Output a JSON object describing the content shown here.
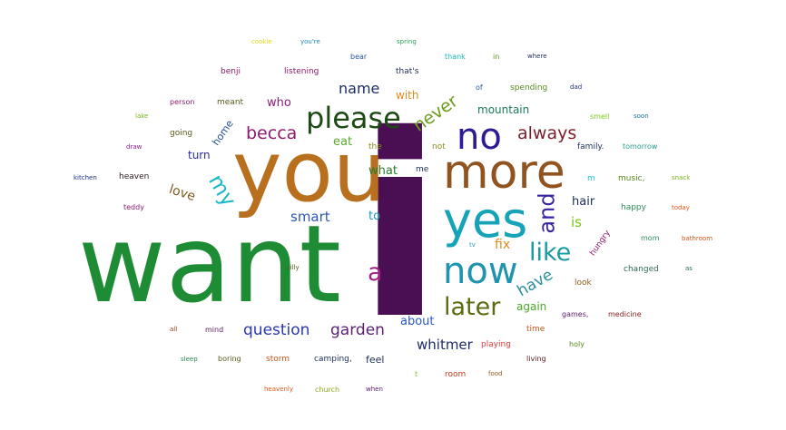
{
  "word_cloud": {
    "words": [
      {
        "id": "want",
        "text": "want",
        "color": "#1e8c35"
      },
      {
        "id": "i",
        "text": "i",
        "color": "#4a0f52"
      },
      {
        "id": "you",
        "text": "you",
        "color": "#b8701f"
      },
      {
        "id": "more",
        "text": "more",
        "color": "#915421"
      },
      {
        "id": "yes",
        "text": "yes",
        "color": "#16a3b8"
      },
      {
        "id": "now",
        "text": "now",
        "color": "#2093b0"
      },
      {
        "id": "please",
        "text": "please",
        "color": "#1d4a14"
      },
      {
        "id": "no",
        "text": "no",
        "color": "#2e1a94"
      },
      {
        "id": "like",
        "text": "like",
        "color": "#1a9aa3"
      },
      {
        "id": "later",
        "text": "later",
        "color": "#5c6b10"
      },
      {
        "id": "and",
        "text": "and",
        "color": "#3a23a0"
      },
      {
        "id": "always",
        "text": "always",
        "color": "#7a1f2a"
      },
      {
        "id": "becca",
        "text": "becca",
        "color": "#8c1a6d"
      },
      {
        "id": "my",
        "text": "my",
        "color": "#17b8c8"
      },
      {
        "id": "never",
        "text": "never",
        "color": "#6b9a1c"
      },
      {
        "id": "name",
        "text": "name",
        "color": "#1d2d64"
      },
      {
        "id": "question",
        "text": "question",
        "color": "#2a37b0"
      },
      {
        "id": "garden",
        "text": "garden",
        "color": "#5b1f73"
      },
      {
        "id": "whitmer",
        "text": "whitmer",
        "color": "#1d2d64"
      },
      {
        "id": "a",
        "text": "a",
        "color": "#a01f84"
      },
      {
        "id": "have",
        "text": "have",
        "color": "#2b8fa0"
      },
      {
        "id": "smart",
        "text": "smart",
        "color": "#2f57b5"
      },
      {
        "id": "mountain",
        "text": "mountain",
        "color": "#1a7a5a"
      },
      {
        "id": "eat",
        "text": "eat",
        "color": "#5aab2f"
      },
      {
        "id": "love",
        "text": "love",
        "color": "#7a5a1e"
      },
      {
        "id": "home",
        "text": "home",
        "color": "#1f4f8c"
      },
      {
        "id": "who",
        "text": "who",
        "color": "#8c1f7a"
      },
      {
        "id": "turn",
        "text": "turn",
        "color": "#2a2aa0"
      },
      {
        "id": "what",
        "text": "what",
        "color": "#2a7a2a"
      },
      {
        "id": "to",
        "text": "to",
        "color": "#1a9ab5"
      },
      {
        "id": "is",
        "text": "is",
        "color": "#7ac81a"
      },
      {
        "id": "fix",
        "text": "fix",
        "color": "#e08a1a"
      },
      {
        "id": "hair",
        "text": "hair",
        "color": "#1d2d5a"
      },
      {
        "id": "about",
        "text": "about",
        "color": "#2a57c8"
      },
      {
        "id": "again",
        "text": "again",
        "color": "#4aa82a"
      },
      {
        "id": "with",
        "text": "with",
        "color": "#e08a1a"
      },
      {
        "id": "feel",
        "text": "feel",
        "color": "#1d2d5a"
      },
      {
        "id": "listening",
        "text": "listening",
        "color": "#8c1a6d"
      },
      {
        "id": "benji",
        "text": "benji",
        "color": "#8c1a6d"
      },
      {
        "id": "cookie",
        "text": "cookie",
        "color": "#e3d317"
      },
      {
        "id": "youre",
        "text": "you're",
        "color": "#1a8ab5"
      },
      {
        "id": "spring",
        "text": "spring",
        "color": "#2aa05a"
      },
      {
        "id": "bear",
        "text": "bear",
        "color": "#2a57a0"
      },
      {
        "id": "thank",
        "text": "thank",
        "color": "#1ab5b5"
      },
      {
        "id": "in",
        "text": "in",
        "color": "#5a9a1e"
      },
      {
        "id": "where",
        "text": "where",
        "color": "#1d2d5a"
      },
      {
        "id": "thats",
        "text": "that's",
        "color": "#1d2d5a"
      },
      {
        "id": "of",
        "text": "of",
        "color": "#2a57a0"
      },
      {
        "id": "spending",
        "text": "spending",
        "color": "#5a8a1e"
      },
      {
        "id": "dad",
        "text": "dad",
        "color": "#1d2d8a"
      },
      {
        "id": "person",
        "text": "person",
        "color": "#8c1a6d"
      },
      {
        "id": "meant",
        "text": "meant",
        "color": "#5a5a1e"
      },
      {
        "id": "smell",
        "text": "smell",
        "color": "#7ac81a"
      },
      {
        "id": "soon",
        "text": "soon",
        "color": "#1a6a8c"
      },
      {
        "id": "lake",
        "text": "lake",
        "color": "#7ab51a"
      },
      {
        "id": "going",
        "text": "going",
        "color": "#5a5a1e"
      },
      {
        "id": "the",
        "text": "the",
        "color": "#8a8a1e"
      },
      {
        "id": "not",
        "text": "not",
        "color": "#8a8a1e"
      },
      {
        "id": "family",
        "text": "family.",
        "color": "#1d2d5a"
      },
      {
        "id": "tomorrow",
        "text": "tomorrow",
        "color": "#2a9a8c"
      },
      {
        "id": "draw",
        "text": "draw",
        "color": "#8c1a8c"
      },
      {
        "id": "kitchen",
        "text": "kitchen",
        "color": "#1d2d8a"
      },
      {
        "id": "heaven",
        "text": "heaven",
        "color": "#2a1a1a"
      },
      {
        "id": "me",
        "text": "me",
        "color": "#1d2d5a"
      },
      {
        "id": "m",
        "text": "m",
        "color": "#17c8d8"
      },
      {
        "id": "music",
        "text": "music,",
        "color": "#5a8a1e"
      },
      {
        "id": "snack",
        "text": "snack",
        "color": "#7ab51a"
      },
      {
        "id": "teddy",
        "text": "teddy",
        "color": "#8c1a6d"
      },
      {
        "id": "happy",
        "text": "happy",
        "color": "#2a8a5a"
      },
      {
        "id": "today",
        "text": "today",
        "color": "#e0571a"
      },
      {
        "id": "hungry",
        "text": "hungry",
        "color": "#8c1a6d"
      },
      {
        "id": "tv",
        "text": "tv",
        "color": "#2a9ab5"
      },
      {
        "id": "mom",
        "text": "mom",
        "color": "#2a8a5a"
      },
      {
        "id": "bathroom",
        "text": "bathroom",
        "color": "#c8571a"
      },
      {
        "id": "silly",
        "text": "silly",
        "color": "#5a5a1e"
      },
      {
        "id": "changed",
        "text": "changed",
        "color": "#2a6a5a"
      },
      {
        "id": "as",
        "text": "as",
        "color": "#2a6a5a"
      },
      {
        "id": "look",
        "text": "look",
        "color": "#8a5a1e"
      },
      {
        "id": "medicine",
        "text": "medicine",
        "color": "#8c1a1a"
      },
      {
        "id": "games",
        "text": "games,",
        "color": "#5a1a6a"
      },
      {
        "id": "time",
        "text": "time",
        "color": "#c8571a"
      },
      {
        "id": "all",
        "text": "all",
        "color": "#8c3a1a"
      },
      {
        "id": "mind",
        "text": "mind",
        "color": "#5a1a5a"
      },
      {
        "id": "playing",
        "text": "playing",
        "color": "#e03a3a"
      },
      {
        "id": "holy",
        "text": "holy",
        "color": "#5a8a1e"
      },
      {
        "id": "sleep",
        "text": "sleep",
        "color": "#2a8a5a"
      },
      {
        "id": "boring",
        "text": "boring",
        "color": "#5a5a1e"
      },
      {
        "id": "storm",
        "text": "storm",
        "color": "#c8571a"
      },
      {
        "id": "camping",
        "text": "camping,",
        "color": "#1d2d5a"
      },
      {
        "id": "living",
        "text": "living",
        "color": "#5a1a1a"
      },
      {
        "id": "t",
        "text": "t",
        "color": "#7ac81a"
      },
      {
        "id": "room",
        "text": "room",
        "color": "#c83a1a"
      },
      {
        "id": "food",
        "text": "food",
        "color": "#8a5a1e"
      },
      {
        "id": "heavenly",
        "text": "heavenly",
        "color": "#e0571a"
      },
      {
        "id": "church",
        "text": "church",
        "color": "#8aa81e"
      },
      {
        "id": "when",
        "text": "when",
        "color": "#5a1a6a"
      }
    ]
  }
}
